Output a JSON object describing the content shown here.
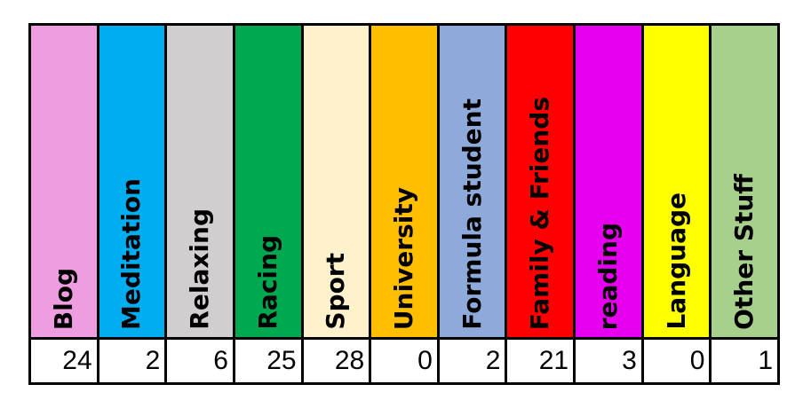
{
  "categories": [
    {
      "label": "Blog",
      "color": "#ee9ee0",
      "count": "24"
    },
    {
      "label": "Meditation",
      "color": "#00aeef",
      "count": "2"
    },
    {
      "label": "Relaxing",
      "color": "#d0cece",
      "count": "6"
    },
    {
      "label": "Racing",
      "color": "#00a84f",
      "count": "25"
    },
    {
      "label": "Sport",
      "color": "#fff1cc",
      "count": "28"
    },
    {
      "label": "University",
      "color": "#ffbf00",
      "count": "0"
    },
    {
      "label": "Formula student",
      "color": "#8eaadb",
      "count": "2"
    },
    {
      "label": "Family & Friends",
      "color": "#ff0000",
      "count": "21"
    },
    {
      "label": "reading",
      "color": "#e600ef",
      "count": "3"
    },
    {
      "label": "Language",
      "color": "#ffff00",
      "count": "0"
    },
    {
      "label": "Other Stuff",
      "color": "#a8d08d",
      "count": "1"
    }
  ]
}
